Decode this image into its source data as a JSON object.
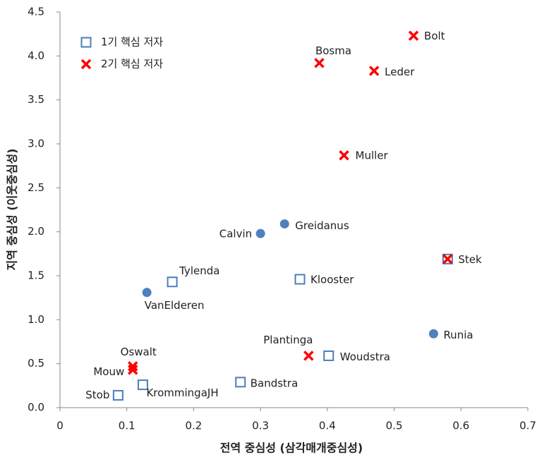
{
  "chart_data": {
    "type": "scatter",
    "xlabel": "전역 중심성 (삼각매개중심성)",
    "ylabel": "지역 중심성 (이웃중심성)",
    "xlim": [
      0,
      0.7
    ],
    "xticks": [
      0,
      0.1,
      0.2,
      0.3,
      0.4,
      0.5,
      0.6,
      0.7
    ],
    "ylim": [
      0,
      4.5
    ],
    "yticks": [
      {
        "value": 0,
        "label": "0.0"
      },
      0.5,
      {
        "value": 1,
        "label": "1.0"
      },
      1.5,
      {
        "value": 2,
        "label": "2.0"
      },
      2.5,
      {
        "value": 3,
        "label": "3.0"
      },
      3.5,
      {
        "value": 4,
        "label": "4.0"
      },
      4.5
    ],
    "legend": "top-left",
    "series": [
      {
        "name": "1기 핵심 저자",
        "marker": "square",
        "color": "#4a7ebb",
        "x": [
          0.087,
          0.124,
          0.27,
          0.168,
          0.359,
          0.402,
          0.58
        ],
        "values": [
          0.14,
          0.26,
          0.29,
          1.43,
          1.46,
          0.59,
          1.69
        ],
        "labels": [
          "Stob",
          "KrommingaJH",
          "Bandstra",
          "Tylenda",
          "Klooster",
          "Woudstra",
          null
        ]
      },
      {
        "name": "2기 핵심 저자",
        "marker": "x",
        "color": "#ff0000",
        "x": [
          0.529,
          0.388,
          0.47,
          0.425,
          0.58,
          0.372,
          0.109,
          0.109
        ],
        "values": [
          4.23,
          3.92,
          3.83,
          2.87,
          1.69,
          0.59,
          0.47,
          0.43
        ],
        "labels": [
          "Bolt",
          "Bosma",
          "Leder",
          "Muller",
          "Stek",
          "Plantinga",
          "Oswalt",
          "Mouw"
        ]
      },
      {
        "marker": "circle",
        "color": "#4f81bd",
        "x": [
          0.3,
          0.336,
          0.13,
          0.559
        ],
        "values": [
          1.98,
          2.09,
          1.31,
          0.84
        ],
        "labels": [
          "Calvin",
          "Greidanus",
          "VanElderen",
          "Runia"
        ]
      }
    ]
  }
}
